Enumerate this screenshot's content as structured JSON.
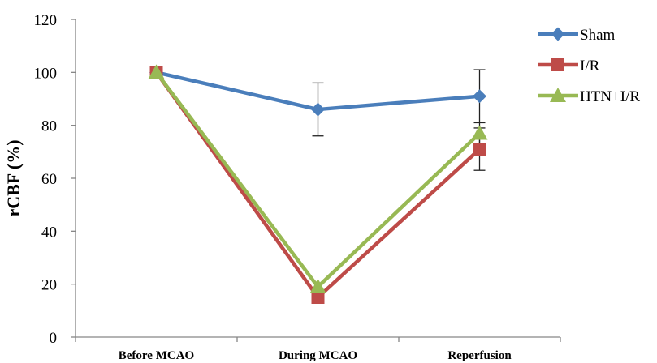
{
  "chart_data": {
    "type": "line",
    "categories": [
      "Before MCAO",
      "During MCAO",
      "Reperfusion"
    ],
    "ylabel": "rCBF (%)",
    "xlabel": "",
    "ylim": [
      0,
      120
    ],
    "yticks": [
      0,
      20,
      40,
      60,
      80,
      100,
      120
    ],
    "grid": false,
    "legend_position": "top-right",
    "series": [
      {
        "name": "Sham",
        "values": [
          100,
          86,
          91
        ],
        "error": [
          0,
          10,
          10
        ],
        "color": "#4a7ebb",
        "marker": "diamond"
      },
      {
        "name": "I/R",
        "values": [
          100,
          15,
          71
        ],
        "error": [
          0,
          0,
          8
        ],
        "color": "#be4b48",
        "marker": "square"
      },
      {
        "name": "HTN+I/R",
        "values": [
          100,
          19,
          77
        ],
        "error": [
          0,
          0,
          4
        ],
        "color": "#98b954",
        "marker": "triangle"
      }
    ]
  }
}
